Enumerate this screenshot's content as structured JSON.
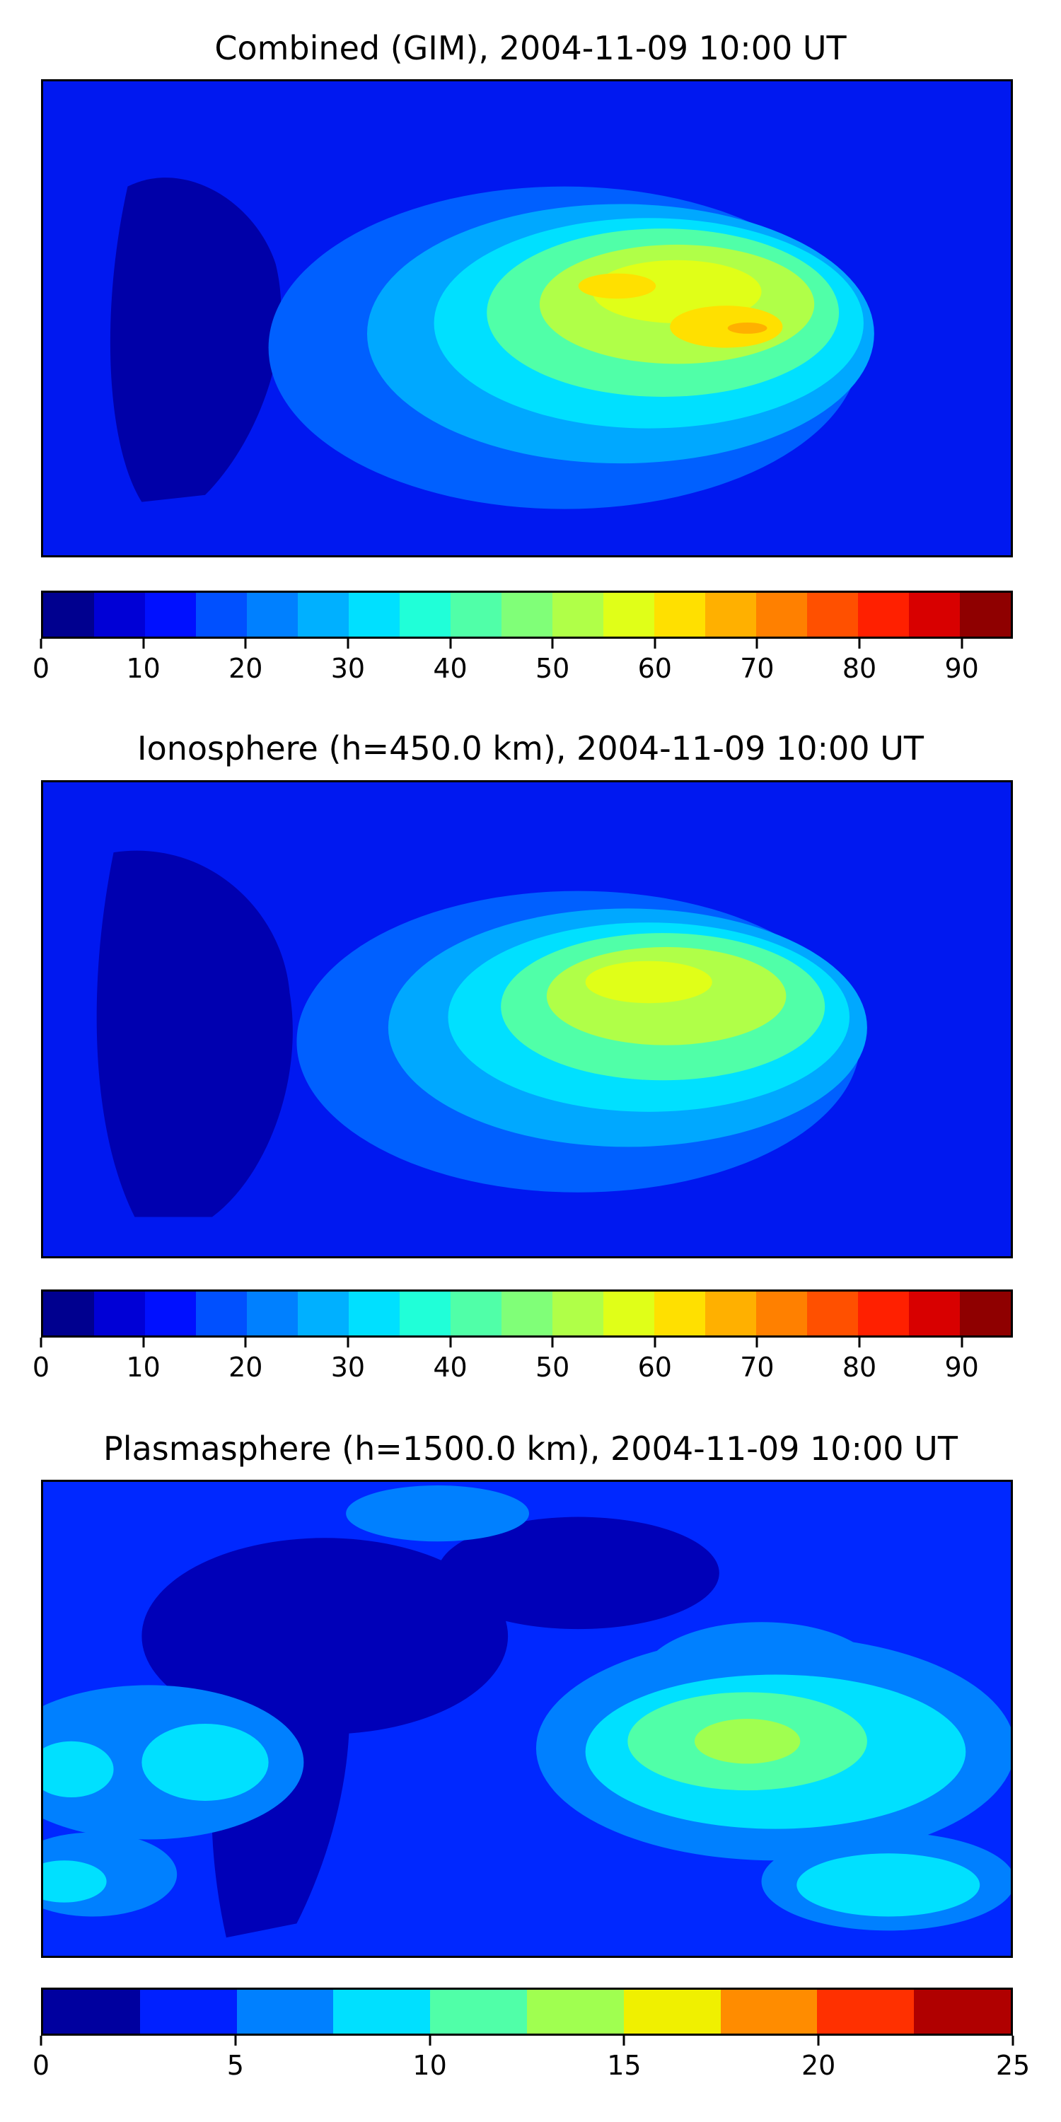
{
  "panels": [
    {
      "title": "Combined (GIM), 2004-11-09 10:00 UT",
      "colorbar": {
        "colors": [
          "#00008f",
          "#0000d6",
          "#0010ff",
          "#0050ff",
          "#0080ff",
          "#00b0ff",
          "#00e0ff",
          "#20ffd8",
          "#50ffa8",
          "#80ff78",
          "#b0ff48",
          "#e0ff18",
          "#ffe000",
          "#ffb000",
          "#ff8000",
          "#ff5000",
          "#ff2000",
          "#d80000",
          "#8f0000"
        ],
        "vmin": 0,
        "vmax": 95,
        "tick_values": [
          0,
          10,
          20,
          30,
          40,
          50,
          60,
          70,
          80,
          90
        ],
        "tick_labels": [
          "0",
          "10",
          "20",
          "30",
          "40",
          "50",
          "60",
          "70",
          "80",
          "90"
        ]
      }
    },
    {
      "title": "Ionosphere  (h=450.0 km), 2004-11-09 10:00 UT",
      "colorbar": {
        "colors": [
          "#00008f",
          "#0000d6",
          "#0010ff",
          "#0050ff",
          "#0080ff",
          "#00b0ff",
          "#00e0ff",
          "#20ffd8",
          "#50ffa8",
          "#80ff78",
          "#b0ff48",
          "#e0ff18",
          "#ffe000",
          "#ffb000",
          "#ff8000",
          "#ff5000",
          "#ff2000",
          "#d80000",
          "#8f0000"
        ],
        "vmin": 0,
        "vmax": 95,
        "tick_values": [
          0,
          10,
          20,
          30,
          40,
          50,
          60,
          70,
          80,
          90
        ],
        "tick_labels": [
          "0",
          "10",
          "20",
          "30",
          "40",
          "50",
          "60",
          "70",
          "80",
          "90"
        ]
      }
    },
    {
      "title": "Plasmasphere (h=1500.0 km), 2004-11-09 10:00 UT",
      "colorbar": {
        "colors": [
          "#00009f",
          "#0020ff",
          "#0080ff",
          "#00e0ff",
          "#50ffa8",
          "#a0ff50",
          "#f0f000",
          "#ff8c00",
          "#ff3000",
          "#b00000"
        ],
        "vmin": 0,
        "vmax": 25,
        "tick_values": [
          0,
          5,
          10,
          15,
          20,
          25
        ],
        "tick_labels": [
          "0",
          "5",
          "10",
          "15",
          "20",
          "25"
        ]
      }
    }
  ]
}
